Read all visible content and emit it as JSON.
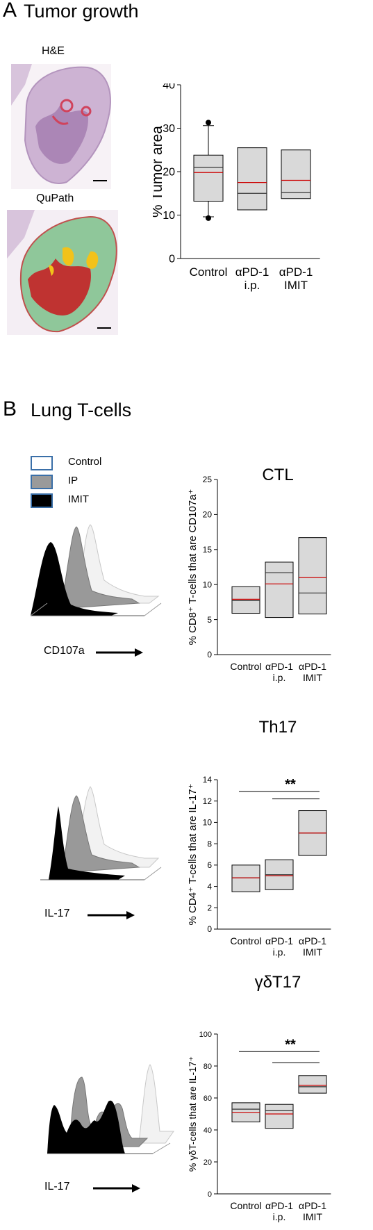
{
  "panelA": {
    "letter": "A",
    "title": "Tumor growth",
    "image_label_1": "H&E",
    "image_label_2": "QuPath"
  },
  "panelB": {
    "letter": "B",
    "title": "Lung T-cells",
    "legend": [
      {
        "label": "Control",
        "color": "#ffffff"
      },
      {
        "label": "IP",
        "color": "#9a9a9a"
      },
      {
        "label": "IMIT",
        "color": "#000000"
      }
    ],
    "hist_label_1": "CD107a",
    "hist_label_2": "IL-17",
    "hist_label_3": "IL-17"
  },
  "colors": {
    "box_fill": "#d9d9d9",
    "median": "#333333",
    "mean": "#cc0000",
    "border": "#3a6fa8"
  },
  "chart_data": [
    {
      "id": "tumor",
      "type": "box",
      "title": "",
      "ylabel": "% Tumor area",
      "ylim": [
        0,
        40
      ],
      "yticks": [
        0,
        10,
        20,
        30,
        40
      ],
      "categories": [
        "Control",
        "αPD-1 i.p.",
        "αPD-1 IMIT"
      ],
      "boxes": [
        {
          "category": "Control",
          "q1": 13.2,
          "median": 21,
          "mean": 19.8,
          "q3": 23.8,
          "whisker_low": 9.6,
          "whisker_high": 30.6,
          "outliers": [
            9.3,
            31.3
          ]
        },
        {
          "category": "αPD-1 i.p.",
          "q1": 11.2,
          "median": 15,
          "mean": 17.5,
          "q3": 25.5
        },
        {
          "category": "αPD-1 IMIT",
          "q1": 13.8,
          "median": 15.2,
          "mean": 18,
          "q3": 25
        }
      ]
    },
    {
      "id": "ctl",
      "type": "box",
      "title": "CTL",
      "ylabel": "% CD8⁺ T-cells that are CD107a⁺",
      "ylim": [
        0,
        25
      ],
      "yticks": [
        0,
        5,
        10,
        15,
        20,
        25
      ],
      "categories": [
        "Control",
        "αPD-1 i.p.",
        "αPD-1 IMIT"
      ],
      "boxes": [
        {
          "category": "Control",
          "q1": 5.9,
          "median": 7.7,
          "mean": 7.9,
          "q3": 9.7
        },
        {
          "category": "αPD-1 i.p.",
          "q1": 5.3,
          "median": 11.7,
          "mean": 10.1,
          "q3": 13.2
        },
        {
          "category": "αPD-1 IMIT",
          "q1": 5.8,
          "median": 8.8,
          "mean": 11,
          "q3": 16.7
        }
      ]
    },
    {
      "id": "th17",
      "type": "box",
      "title": "Th17",
      "ylabel": "% CD4⁺ T-cells that are IL-17⁺",
      "ylim": [
        0,
        14
      ],
      "yticks": [
        0,
        2,
        4,
        6,
        8,
        10,
        12,
        14
      ],
      "categories": [
        "Control",
        "αPD-1 i.p.",
        "αPD-1 IMIT"
      ],
      "boxes": [
        {
          "category": "Control",
          "q1": 3.5,
          "median": 4.8,
          "mean": 4.8,
          "q3": 6
        },
        {
          "category": "αPD-1 i.p.",
          "q1": 3.7,
          "median": 5.1,
          "mean": 5,
          "q3": 6.5
        },
        {
          "category": "αPD-1 IMIT",
          "q1": 6.9,
          "median": 9,
          "mean": 9,
          "q3": 11.1
        }
      ],
      "significance": {
        "label": "**",
        "lines": [
          {
            "from": 0,
            "to": 2,
            "y": 12.9
          },
          {
            "from": 1,
            "to": 2,
            "y": 12.2
          }
        ]
      }
    },
    {
      "id": "gdt17",
      "type": "box",
      "title": "γδT17",
      "ylabel": "% γδT-cells that are IL-17⁺",
      "ylim": [
        0,
        100
      ],
      "yticks": [
        0,
        20,
        40,
        60,
        80,
        100
      ],
      "categories": [
        "Control",
        "αPD-1 i.p.",
        "αPD-1 IMIT"
      ],
      "boxes": [
        {
          "category": "Control",
          "q1": 45,
          "median": 53,
          "mean": 51,
          "q3": 57
        },
        {
          "category": "αPD-1 i.p.",
          "q1": 41,
          "median": 52,
          "mean": 50,
          "q3": 56
        },
        {
          "category": "αPD-1 IMIT",
          "q1": 63,
          "median": 67,
          "mean": 68,
          "q3": 74
        }
      ],
      "significance": {
        "label": "**",
        "lines": [
          {
            "from": 0,
            "to": 2,
            "y": 89
          },
          {
            "from": 1,
            "to": 2,
            "y": 82
          }
        ]
      }
    }
  ]
}
